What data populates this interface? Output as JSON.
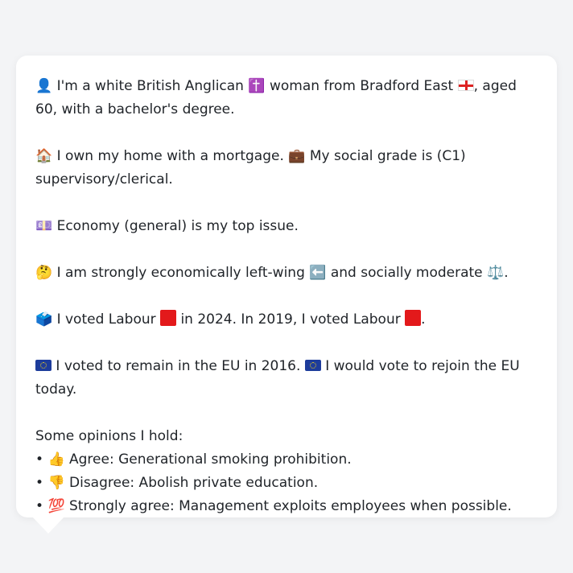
{
  "paragraphs": [
    {
      "emoji_start": "👤",
      "segments": [
        {
          "t": " I'm a white British Anglican "
        },
        {
          "e": "✝️"
        },
        {
          "t": " woman from Bradford East "
        },
        {
          "flag": "england"
        },
        {
          "t": ", aged 60, with a bachelor's degree."
        }
      ]
    }
  ],
  "p1": {
    "icon": "👤",
    "text_a": "I'm a white British Anglican",
    "icon2": "✝️",
    "text_b": "woman from Bradford East",
    "text_c": ", aged 60, with a bachelor's degree."
  },
  "p2": {
    "icon": "🏠",
    "text_a": "I own my home with a mortgage.",
    "icon2": "💼",
    "text_b": "My social grade is (C1) supervisory/clerical."
  },
  "p3": {
    "icon": "💷",
    "text_a": "Economy (general) is my top issue."
  },
  "p4": {
    "icon": "🤔",
    "text_a": "I am strongly economically left-wing",
    "icon2": "⬅️",
    "text_b": "and socially moderate",
    "icon3": "⚖️",
    "text_c": "."
  },
  "p5": {
    "icon": "🗳️",
    "text_a": "I voted Labour",
    "text_b": "in 2024. In 2019, I voted Labour",
    "text_c": "."
  },
  "p6": {
    "text_a": "I voted to remain in the EU in 2016.",
    "text_b": "I would vote to rejoin the EU today."
  },
  "opinions": {
    "title": "Some opinions I hold:",
    "items": [
      {
        "bullet": "•",
        "icon": "👍",
        "text": "Agree: Generational smoking prohibition."
      },
      {
        "bullet": "•",
        "icon": "👎",
        "text": "Disagree: Abolish private education."
      },
      {
        "bullet": "•",
        "icon": "💯",
        "text": "Strongly agree: Management exploits employees when possible."
      }
    ]
  },
  "colors": {
    "labour": "#e3191b",
    "eu": "#1d3c9b",
    "card": "#ffffff",
    "background": "#f3f4f6"
  }
}
